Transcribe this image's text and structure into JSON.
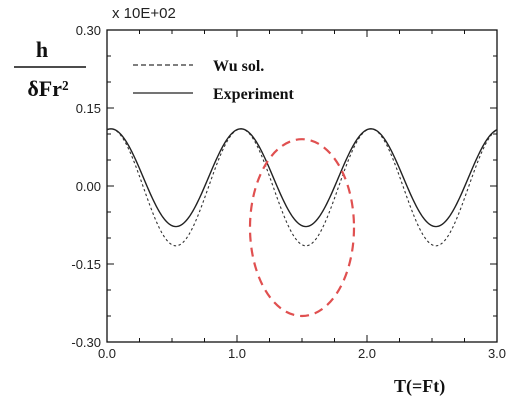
{
  "chart_data": {
    "type": "line",
    "ylabel_numerator": "h",
    "ylabel_denominator": "δFr²",
    "scale_note": "x 10E+02",
    "xlabel": "T(=Ft)",
    "xlim": [
      0.0,
      3.0
    ],
    "ylim": [
      -0.3,
      0.3
    ],
    "x_ticks": [
      "0.0",
      "1.0",
      "2.0",
      "3.0"
    ],
    "y_ticks": [
      "0.30",
      "0.15",
      "0.00",
      "-0.15",
      "-0.30"
    ],
    "legend": {
      "placement": "top-left",
      "entries": [
        "Wu sol.",
        "Experiment"
      ]
    },
    "series": [
      {
        "name": "Wu sol.",
        "style": "dashed",
        "color": "#333333",
        "period": 1.0,
        "max": 0.11,
        "min": -0.115
      },
      {
        "name": "Experiment",
        "style": "solid",
        "color": "#222222",
        "period": 1.0,
        "max": 0.11,
        "min": -0.078
      }
    ],
    "annotation": {
      "type": "dashed-circle",
      "color": "#e05050",
      "center": [
        1.5,
        -0.08
      ],
      "radius": [
        0.4,
        0.17
      ]
    }
  }
}
